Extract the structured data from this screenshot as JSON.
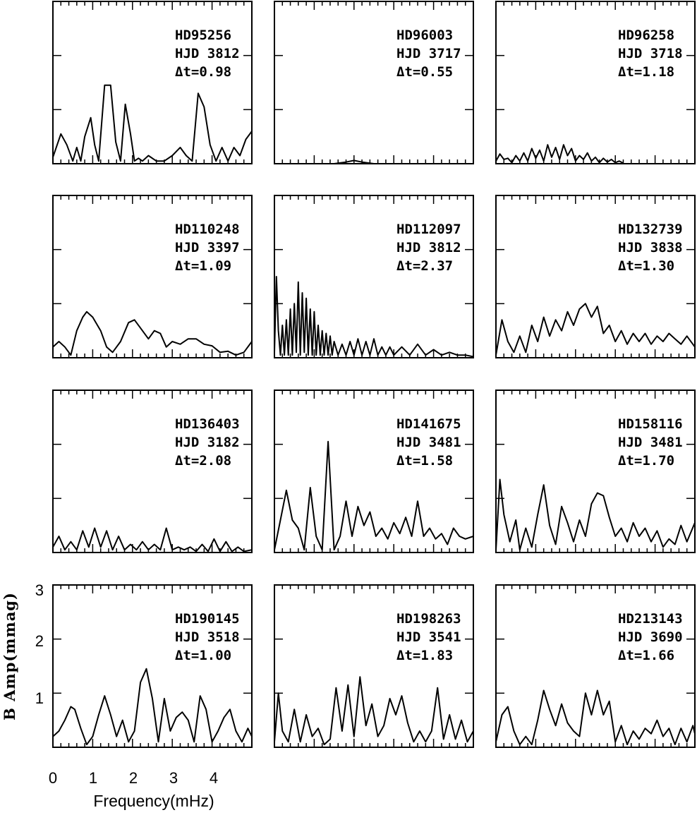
{
  "chart_data": {
    "type": "line",
    "layout": "grid",
    "rows": 4,
    "cols": 3,
    "xlabel": "Frequency(mHz)",
    "ylabel": "B Amp(mmag)",
    "xlim": [
      0,
      5
    ],
    "ylim": [
      0,
      3
    ],
    "x_ticks": [
      0,
      1,
      2,
      3,
      4
    ],
    "y_ticks": [
      1,
      2,
      3
    ],
    "panels": [
      {
        "star": "HD95256",
        "hjd": "HJD 3812",
        "dt": "Δt=0.98",
        "x": [
          0,
          0.2,
          0.35,
          0.5,
          0.6,
          0.7,
          0.8,
          0.95,
          1.05,
          1.15,
          1.3,
          1.45,
          1.58,
          1.7,
          1.82,
          1.95,
          2.05,
          2.15,
          2.25,
          2.4,
          2.6,
          2.8,
          3.0,
          3.2,
          3.35,
          3.5,
          3.65,
          3.8,
          3.95,
          4.1,
          4.25,
          4.4,
          4.55,
          4.7,
          4.85,
          5.0
        ],
        "y": [
          0.12,
          0.55,
          0.35,
          0.05,
          0.3,
          0.05,
          0.5,
          0.85,
          0.35,
          0.05,
          1.45,
          1.45,
          0.4,
          0.05,
          1.1,
          0.55,
          0.05,
          0.1,
          0.05,
          0.15,
          0.05,
          0.05,
          0.15,
          0.3,
          0.15,
          0.05,
          1.3,
          1.05,
          0.35,
          0.05,
          0.3,
          0.05,
          0.3,
          0.15,
          0.45,
          0.6
        ]
      },
      {
        "star": "HD96003",
        "hjd": "HJD 3717",
        "dt": "Δt=0.55",
        "x": [
          0,
          1.5,
          1.8,
          2.0,
          2.2,
          2.5,
          5.0
        ],
        "y": [
          0,
          0,
          0.03,
          0.06,
          0.03,
          0,
          0
        ]
      },
      {
        "star": "HD96258",
        "hjd": "HJD 3718",
        "dt": "Δt=1.18",
        "x": [
          0,
          0.1,
          0.2,
          0.3,
          0.4,
          0.5,
          0.6,
          0.7,
          0.8,
          0.9,
          1.0,
          1.1,
          1.2,
          1.3,
          1.4,
          1.5,
          1.6,
          1.7,
          1.8,
          1.9,
          2.0,
          2.1,
          2.2,
          2.3,
          2.4,
          2.5,
          2.6,
          2.7,
          2.8,
          2.9,
          3.0,
          3.1,
          3.2
        ],
        "y": [
          0.05,
          0.18,
          0.08,
          0.1,
          0.02,
          0.15,
          0.05,
          0.2,
          0.05,
          0.28,
          0.1,
          0.25,
          0.05,
          0.35,
          0.12,
          0.3,
          0.08,
          0.35,
          0.15,
          0.28,
          0.05,
          0.15,
          0.08,
          0.2,
          0.05,
          0.12,
          0.02,
          0.1,
          0.03,
          0.08,
          0.02,
          0.05,
          0.01
        ]
      },
      {
        "star": "HD110248",
        "hjd": "HJD 3397",
        "dt": "Δt=1.09",
        "x": [
          0,
          0.15,
          0.3,
          0.45,
          0.6,
          0.75,
          0.85,
          1.0,
          1.2,
          1.35,
          1.5,
          1.7,
          1.9,
          2.05,
          2.2,
          2.4,
          2.55,
          2.7,
          2.85,
          3.0,
          3.2,
          3.4,
          3.6,
          3.8,
          4.0,
          4.2,
          4.4,
          4.6,
          4.8,
          5.0
        ],
        "y": [
          0.2,
          0.3,
          0.2,
          0.05,
          0.5,
          0.75,
          0.85,
          0.75,
          0.5,
          0.2,
          0.1,
          0.3,
          0.65,
          0.7,
          0.55,
          0.35,
          0.5,
          0.45,
          0.2,
          0.3,
          0.25,
          0.35,
          0.35,
          0.25,
          0.22,
          0.1,
          0.12,
          0.05,
          0.1,
          0.3
        ]
      },
      {
        "star": "HD112097",
        "hjd": "HJD 3812",
        "dt": "Δt=2.37",
        "x": [
          0,
          0.05,
          0.1,
          0.15,
          0.2,
          0.25,
          0.3,
          0.35,
          0.4,
          0.45,
          0.5,
          0.55,
          0.6,
          0.65,
          0.7,
          0.75,
          0.8,
          0.85,
          0.9,
          0.95,
          1.0,
          1.05,
          1.1,
          1.15,
          1.2,
          1.25,
          1.3,
          1.35,
          1.4,
          1.45,
          1.5,
          1.6,
          1.7,
          1.8,
          1.9,
          2.0,
          2.1,
          2.2,
          2.3,
          2.4,
          2.5,
          2.6,
          2.7,
          2.8,
          2.9,
          3.0,
          3.2,
          3.4,
          3.6,
          3.8,
          4.0,
          4.2,
          4.4,
          4.6,
          4.8,
          5.0
        ],
        "y": [
          0.1,
          1.5,
          0.5,
          0.05,
          0.6,
          0.05,
          0.7,
          0.05,
          0.9,
          0.05,
          1.0,
          0.1,
          1.4,
          0.05,
          1.2,
          0.1,
          1.1,
          0.05,
          0.9,
          0.05,
          0.85,
          0.05,
          0.6,
          0.05,
          0.5,
          0.05,
          0.45,
          0.05,
          0.4,
          0.05,
          0.3,
          0.05,
          0.25,
          0.05,
          0.3,
          0.05,
          0.35,
          0.05,
          0.3,
          0.05,
          0.35,
          0.05,
          0.2,
          0.05,
          0.2,
          0.05,
          0.2,
          0.05,
          0.25,
          0.05,
          0.15,
          0.05,
          0.1,
          0.05,
          0.05,
          0.02
        ]
      },
      {
        "star": "HD132739",
        "hjd": "HJD 3838",
        "dt": "Δt=1.30",
        "x": [
          0,
          0.15,
          0.3,
          0.45,
          0.6,
          0.75,
          0.9,
          1.05,
          1.2,
          1.35,
          1.5,
          1.65,
          1.8,
          1.95,
          2.1,
          2.25,
          2.4,
          2.55,
          2.7,
          2.85,
          3.0,
          3.15,
          3.3,
          3.45,
          3.6,
          3.75,
          3.9,
          4.05,
          4.2,
          4.35,
          4.5,
          4.65,
          4.8,
          5.0
        ],
        "y": [
          0.05,
          0.7,
          0.3,
          0.1,
          0.4,
          0.1,
          0.6,
          0.3,
          0.75,
          0.4,
          0.7,
          0.5,
          0.85,
          0.6,
          0.9,
          1.0,
          0.75,
          0.95,
          0.45,
          0.6,
          0.3,
          0.5,
          0.25,
          0.45,
          0.3,
          0.45,
          0.25,
          0.4,
          0.3,
          0.45,
          0.35,
          0.25,
          0.4,
          0.2
        ]
      },
      {
        "star": "HD136403",
        "hjd": "HJD 3182",
        "dt": "Δt=2.08",
        "x": [
          0,
          0.15,
          0.3,
          0.45,
          0.6,
          0.75,
          0.9,
          1.05,
          1.2,
          1.35,
          1.5,
          1.65,
          1.8,
          1.95,
          2.1,
          2.25,
          2.4,
          2.55,
          2.7,
          2.85,
          3.0,
          3.15,
          3.3,
          3.45,
          3.6,
          3.75,
          3.9,
          4.05,
          4.2,
          4.35,
          4.5,
          4.65,
          4.8,
          5.0
        ],
        "y": [
          0.1,
          0.3,
          0.05,
          0.2,
          0.05,
          0.4,
          0.1,
          0.45,
          0.1,
          0.4,
          0.05,
          0.3,
          0.05,
          0.15,
          0.05,
          0.2,
          0.05,
          0.15,
          0.05,
          0.45,
          0.05,
          0.1,
          0.05,
          0.1,
          0.02,
          0.15,
          0.02,
          0.25,
          0.02,
          0.2,
          0.02,
          0.1,
          0.02,
          0.05
        ]
      },
      {
        "star": "HD141675",
        "hjd": "HJD 3481",
        "dt": "Δt=1.58",
        "x": [
          0,
          0.15,
          0.3,
          0.45,
          0.6,
          0.75,
          0.9,
          1.05,
          1.2,
          1.35,
          1.5,
          1.65,
          1.8,
          1.95,
          2.1,
          2.25,
          2.4,
          2.55,
          2.7,
          2.85,
          3.0,
          3.15,
          3.3,
          3.45,
          3.6,
          3.75,
          3.9,
          4.05,
          4.2,
          4.35,
          4.5,
          4.65,
          4.8,
          5.0
        ],
        "y": [
          0.05,
          0.6,
          1.15,
          0.6,
          0.45,
          0.05,
          1.2,
          0.3,
          0.05,
          2.05,
          0.05,
          0.3,
          0.95,
          0.3,
          0.85,
          0.5,
          0.75,
          0.3,
          0.45,
          0.25,
          0.55,
          0.35,
          0.65,
          0.3,
          0.95,
          0.3,
          0.45,
          0.25,
          0.35,
          0.15,
          0.45,
          0.3,
          0.25,
          0.3
        ]
      },
      {
        "star": "HD158116",
        "hjd": "HJD 3481",
        "dt": "Δt=1.70",
        "x": [
          0,
          0.1,
          0.2,
          0.35,
          0.5,
          0.6,
          0.75,
          0.9,
          1.05,
          1.2,
          1.35,
          1.5,
          1.65,
          1.8,
          1.95,
          2.1,
          2.25,
          2.4,
          2.55,
          2.7,
          2.85,
          3.0,
          3.15,
          3.3,
          3.45,
          3.6,
          3.75,
          3.9,
          4.05,
          4.2,
          4.35,
          4.5,
          4.65,
          4.8,
          5.0
        ],
        "y": [
          0.05,
          1.35,
          0.7,
          0.2,
          0.6,
          0.05,
          0.45,
          0.1,
          0.7,
          1.25,
          0.5,
          0.15,
          0.85,
          0.55,
          0.2,
          0.6,
          0.3,
          0.9,
          1.1,
          1.05,
          0.65,
          0.3,
          0.45,
          0.2,
          0.55,
          0.3,
          0.45,
          0.2,
          0.4,
          0.1,
          0.25,
          0.15,
          0.5,
          0.2,
          0.55
        ]
      },
      {
        "star": "HD190145",
        "hjd": "HJD 3518",
        "dt": "Δt=1.00",
        "x": [
          0,
          0.15,
          0.3,
          0.45,
          0.55,
          0.7,
          0.85,
          1.0,
          1.15,
          1.3,
          1.45,
          1.6,
          1.75,
          1.9,
          2.05,
          2.2,
          2.35,
          2.5,
          2.65,
          2.8,
          2.95,
          3.1,
          3.25,
          3.4,
          3.55,
          3.7,
          3.85,
          4.0,
          4.15,
          4.3,
          4.45,
          4.6,
          4.75,
          4.9,
          5.0
        ],
        "y": [
          0.2,
          0.3,
          0.5,
          0.75,
          0.7,
          0.35,
          0.05,
          0.2,
          0.6,
          0.95,
          0.6,
          0.2,
          0.5,
          0.1,
          0.3,
          1.2,
          1.45,
          0.9,
          0.1,
          0.9,
          0.3,
          0.55,
          0.65,
          0.5,
          0.1,
          0.95,
          0.7,
          0.1,
          0.3,
          0.55,
          0.7,
          0.3,
          0.1,
          0.35,
          0.2
        ]
      },
      {
        "star": "HD198263",
        "hjd": "HJD 3541",
        "dt": "Δt=1.83",
        "x": [
          0,
          0.1,
          0.2,
          0.35,
          0.5,
          0.65,
          0.8,
          0.95,
          1.1,
          1.25,
          1.4,
          1.55,
          1.7,
          1.85,
          2.0,
          2.15,
          2.3,
          2.45,
          2.6,
          2.75,
          2.9,
          3.05,
          3.2,
          3.35,
          3.5,
          3.65,
          3.8,
          3.95,
          4.1,
          4.25,
          4.4,
          4.55,
          4.7,
          4.85,
          5.0
        ],
        "y": [
          0.1,
          1.0,
          0.3,
          0.1,
          0.7,
          0.1,
          0.6,
          0.2,
          0.35,
          0.05,
          0.15,
          1.1,
          0.3,
          1.15,
          0.2,
          1.3,
          0.4,
          0.8,
          0.2,
          0.4,
          0.9,
          0.6,
          0.95,
          0.45,
          0.1,
          0.3,
          0.1,
          0.3,
          1.1,
          0.15,
          0.6,
          0.15,
          0.5,
          0.1,
          0.3
        ]
      },
      {
        "star": "HD213143",
        "hjd": "HJD 3690",
        "dt": "Δt=1.66",
        "x": [
          0,
          0.15,
          0.3,
          0.45,
          0.6,
          0.75,
          0.9,
          1.05,
          1.2,
          1.35,
          1.5,
          1.65,
          1.8,
          1.95,
          2.1,
          2.25,
          2.4,
          2.55,
          2.7,
          2.85,
          3.0,
          3.15,
          3.3,
          3.45,
          3.6,
          3.75,
          3.9,
          4.05,
          4.2,
          4.35,
          4.5,
          4.65,
          4.8,
          4.95,
          5.0
        ],
        "y": [
          0.1,
          0.6,
          0.75,
          0.3,
          0.05,
          0.2,
          0.05,
          0.5,
          1.05,
          0.7,
          0.4,
          0.8,
          0.45,
          0.3,
          0.2,
          1.0,
          0.6,
          1.05,
          0.6,
          0.85,
          0.1,
          0.4,
          0.05,
          0.3,
          0.15,
          0.35,
          0.25,
          0.5,
          0.2,
          0.35,
          0.05,
          0.35,
          0.1,
          0.4,
          0.25
        ]
      }
    ]
  }
}
